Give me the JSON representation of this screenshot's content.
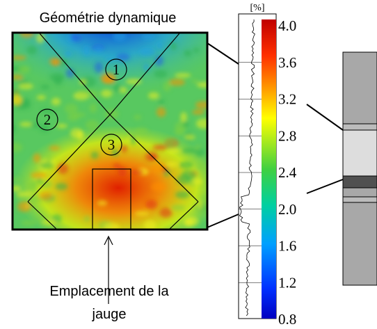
{
  "figure": {
    "title": "Géométrie dynamique",
    "colorbar": {
      "unit": "[%]",
      "ticks": [
        "4.0",
        "3.6",
        "3.2",
        "2.8",
        "2.4",
        "2.0",
        "1.6",
        "1.2",
        "0.8"
      ]
    },
    "regions": [
      "1",
      "2",
      "3"
    ],
    "gauge_label": [
      "Emplacement de la",
      "jauge"
    ]
  }
}
